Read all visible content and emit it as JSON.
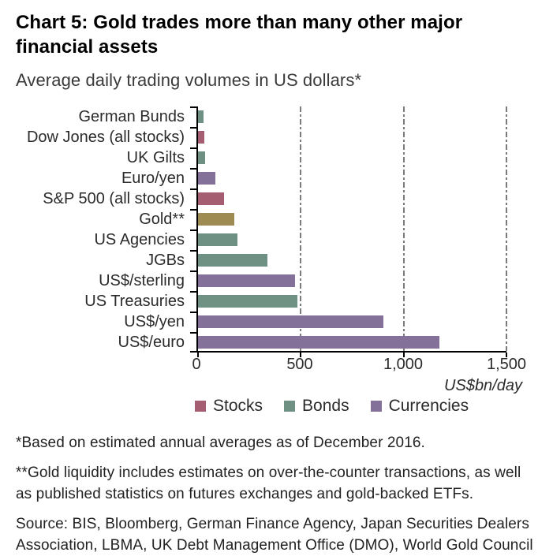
{
  "header": {
    "title": "Chart 5: Gold trades more than many other major financial assets",
    "subtitle": "Average daily trading volumes in US dollars*"
  },
  "chart_data": {
    "type": "bar",
    "orientation": "horizontal",
    "title": "Average daily trading volumes in US dollars*",
    "xlabel": "US$bn/day",
    "ylabel": "",
    "xlim": [
      0,
      1500
    ],
    "grid": "vertical dash-dot gridlines at ticks",
    "legend_position": "bottom",
    "categories": [
      "German Bunds",
      "Dow Jones (all stocks)",
      "UK Gilts",
      "Euro/yen",
      "S&P 500 (all stocks)",
      "Gold**",
      "US Agencies",
      "JGBs",
      "US$/sterling",
      "US Treasuries",
      "US$/yen",
      "US$/euro"
    ],
    "values": [
      25,
      29,
      34,
      83,
      125,
      178,
      192,
      339,
      470,
      485,
      901,
      1173
    ],
    "groups": [
      "Bonds",
      "Stocks",
      "Bonds",
      "Currencies",
      "Stocks",
      "Gold",
      "Bonds",
      "Bonds",
      "Currencies",
      "Bonds",
      "Currencies",
      "Currencies"
    ],
    "colors": {
      "Stocks": "#a55d72",
      "Bonds": "#6f9183",
      "Currencies": "#84719a",
      "Gold": "#9e8b52"
    },
    "axis_color": "#000000",
    "gridline_color": "#7b7b7b",
    "xticks": [
      0,
      500,
      1000,
      1500
    ],
    "xtick_labels": [
      "0",
      "500",
      "1,000",
      "1,500"
    ],
    "legend": [
      {
        "label": "Stocks",
        "color": "#a55d72"
      },
      {
        "label": "Bonds",
        "color": "#6f9183"
      },
      {
        "label": "Currencies",
        "color": "#84719a"
      }
    ]
  },
  "unit_label": "US$bn/day",
  "footnotes": {
    "note1": "*Based on estimated annual averages as of December 2016.",
    "note2": "**Gold liquidity includes estimates on over-the-counter transactions, as well as published statistics on futures exchanges and gold-backed ETFs.",
    "source": "Source: BIS, Bloomberg, German Finance Agency, Japan Securities Dealers Association, LBMA, UK Debt Management Office (DMO), World Gold Council"
  }
}
